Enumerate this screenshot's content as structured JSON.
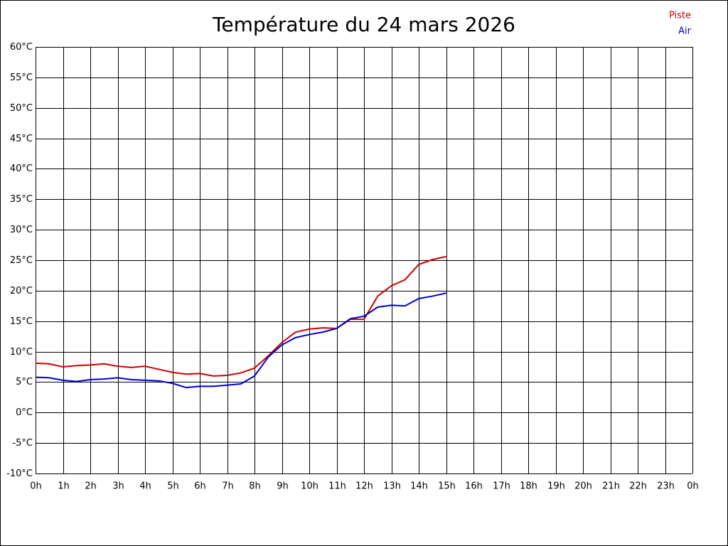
{
  "chart_data": {
    "type": "line",
    "title": "Température du 24 mars 2026",
    "x": [
      0,
      0.5,
      1,
      1.5,
      2,
      2.5,
      3,
      3.5,
      4,
      4.5,
      5,
      5.5,
      6,
      6.5,
      7,
      7.5,
      8,
      8.5,
      9,
      9.5,
      10,
      10.5,
      11,
      11.5,
      12,
      12.5,
      13,
      13.5,
      14,
      14.5,
      15
    ],
    "series": [
      {
        "name": "Piste",
        "color": "#cc0000",
        "values": [
          8.1,
          8.0,
          7.5,
          7.7,
          7.8,
          8.0,
          7.6,
          7.4,
          7.6,
          7.1,
          6.6,
          6.3,
          6.4,
          6.0,
          6.1,
          6.5,
          7.3,
          9.3,
          11.5,
          13.2,
          13.7,
          13.9,
          13.8,
          15.3,
          15.3,
          19.1,
          20.8,
          21.8,
          24.3,
          25.1,
          25.6
        ]
      },
      {
        "name": "Air",
        "color": "#0000cc",
        "values": [
          5.8,
          5.7,
          5.3,
          5.1,
          5.4,
          5.5,
          5.7,
          5.4,
          5.3,
          5.2,
          4.8,
          4.1,
          4.3,
          4.3,
          4.5,
          4.7,
          6.0,
          9.1,
          11.1,
          12.3,
          12.8,
          13.2,
          13.8,
          15.4,
          15.8,
          17.3,
          17.6,
          17.5,
          18.7,
          19.1,
          19.6
        ]
      }
    ],
    "xlim": [
      0,
      24
    ],
    "xticks": [
      {
        "value": 0,
        "label": "0h"
      },
      {
        "value": 1,
        "label": "1h"
      },
      {
        "value": 2,
        "label": "2h"
      },
      {
        "value": 3,
        "label": "3h"
      },
      {
        "value": 4,
        "label": "4h"
      },
      {
        "value": 5,
        "label": "5h"
      },
      {
        "value": 6,
        "label": "6h"
      },
      {
        "value": 7,
        "label": "7h"
      },
      {
        "value": 8,
        "label": "8h"
      },
      {
        "value": 9,
        "label": "9h"
      },
      {
        "value": 10,
        "label": "10h"
      },
      {
        "value": 11,
        "label": "11h"
      },
      {
        "value": 12,
        "label": "12h"
      },
      {
        "value": 13,
        "label": "13h"
      },
      {
        "value": 14,
        "label": "14h"
      },
      {
        "value": 15,
        "label": "15h"
      },
      {
        "value": 16,
        "label": "16h"
      },
      {
        "value": 17,
        "label": "17h"
      },
      {
        "value": 18,
        "label": "18h"
      },
      {
        "value": 19,
        "label": "19h"
      },
      {
        "value": 20,
        "label": "20h"
      },
      {
        "value": 21,
        "label": "21h"
      },
      {
        "value": 22,
        "label": "22h"
      },
      {
        "value": 23,
        "label": "23h"
      },
      {
        "value": 24,
        "label": "0h"
      }
    ],
    "ylim": [
      -10,
      60
    ],
    "yticks": [
      {
        "value": -10,
        "label": "-10°C"
      },
      {
        "value": -5,
        "label": "-5°C"
      },
      {
        "value": 0,
        "label": "0°C"
      },
      {
        "value": 5,
        "label": "5°C"
      },
      {
        "value": 10,
        "label": "10°C"
      },
      {
        "value": 15,
        "label": "15°C"
      },
      {
        "value": 20,
        "label": "20°C"
      },
      {
        "value": 25,
        "label": "25°C"
      },
      {
        "value": 30,
        "label": "30°C"
      },
      {
        "value": 35,
        "label": "35°C"
      },
      {
        "value": 40,
        "label": "40°C"
      },
      {
        "value": 45,
        "label": "45°C"
      },
      {
        "value": 50,
        "label": "50°C"
      },
      {
        "value": 55,
        "label": "55°C"
      },
      {
        "value": 60,
        "label": "60°C"
      }
    ],
    "grid": true,
    "legend": "top-right"
  }
}
